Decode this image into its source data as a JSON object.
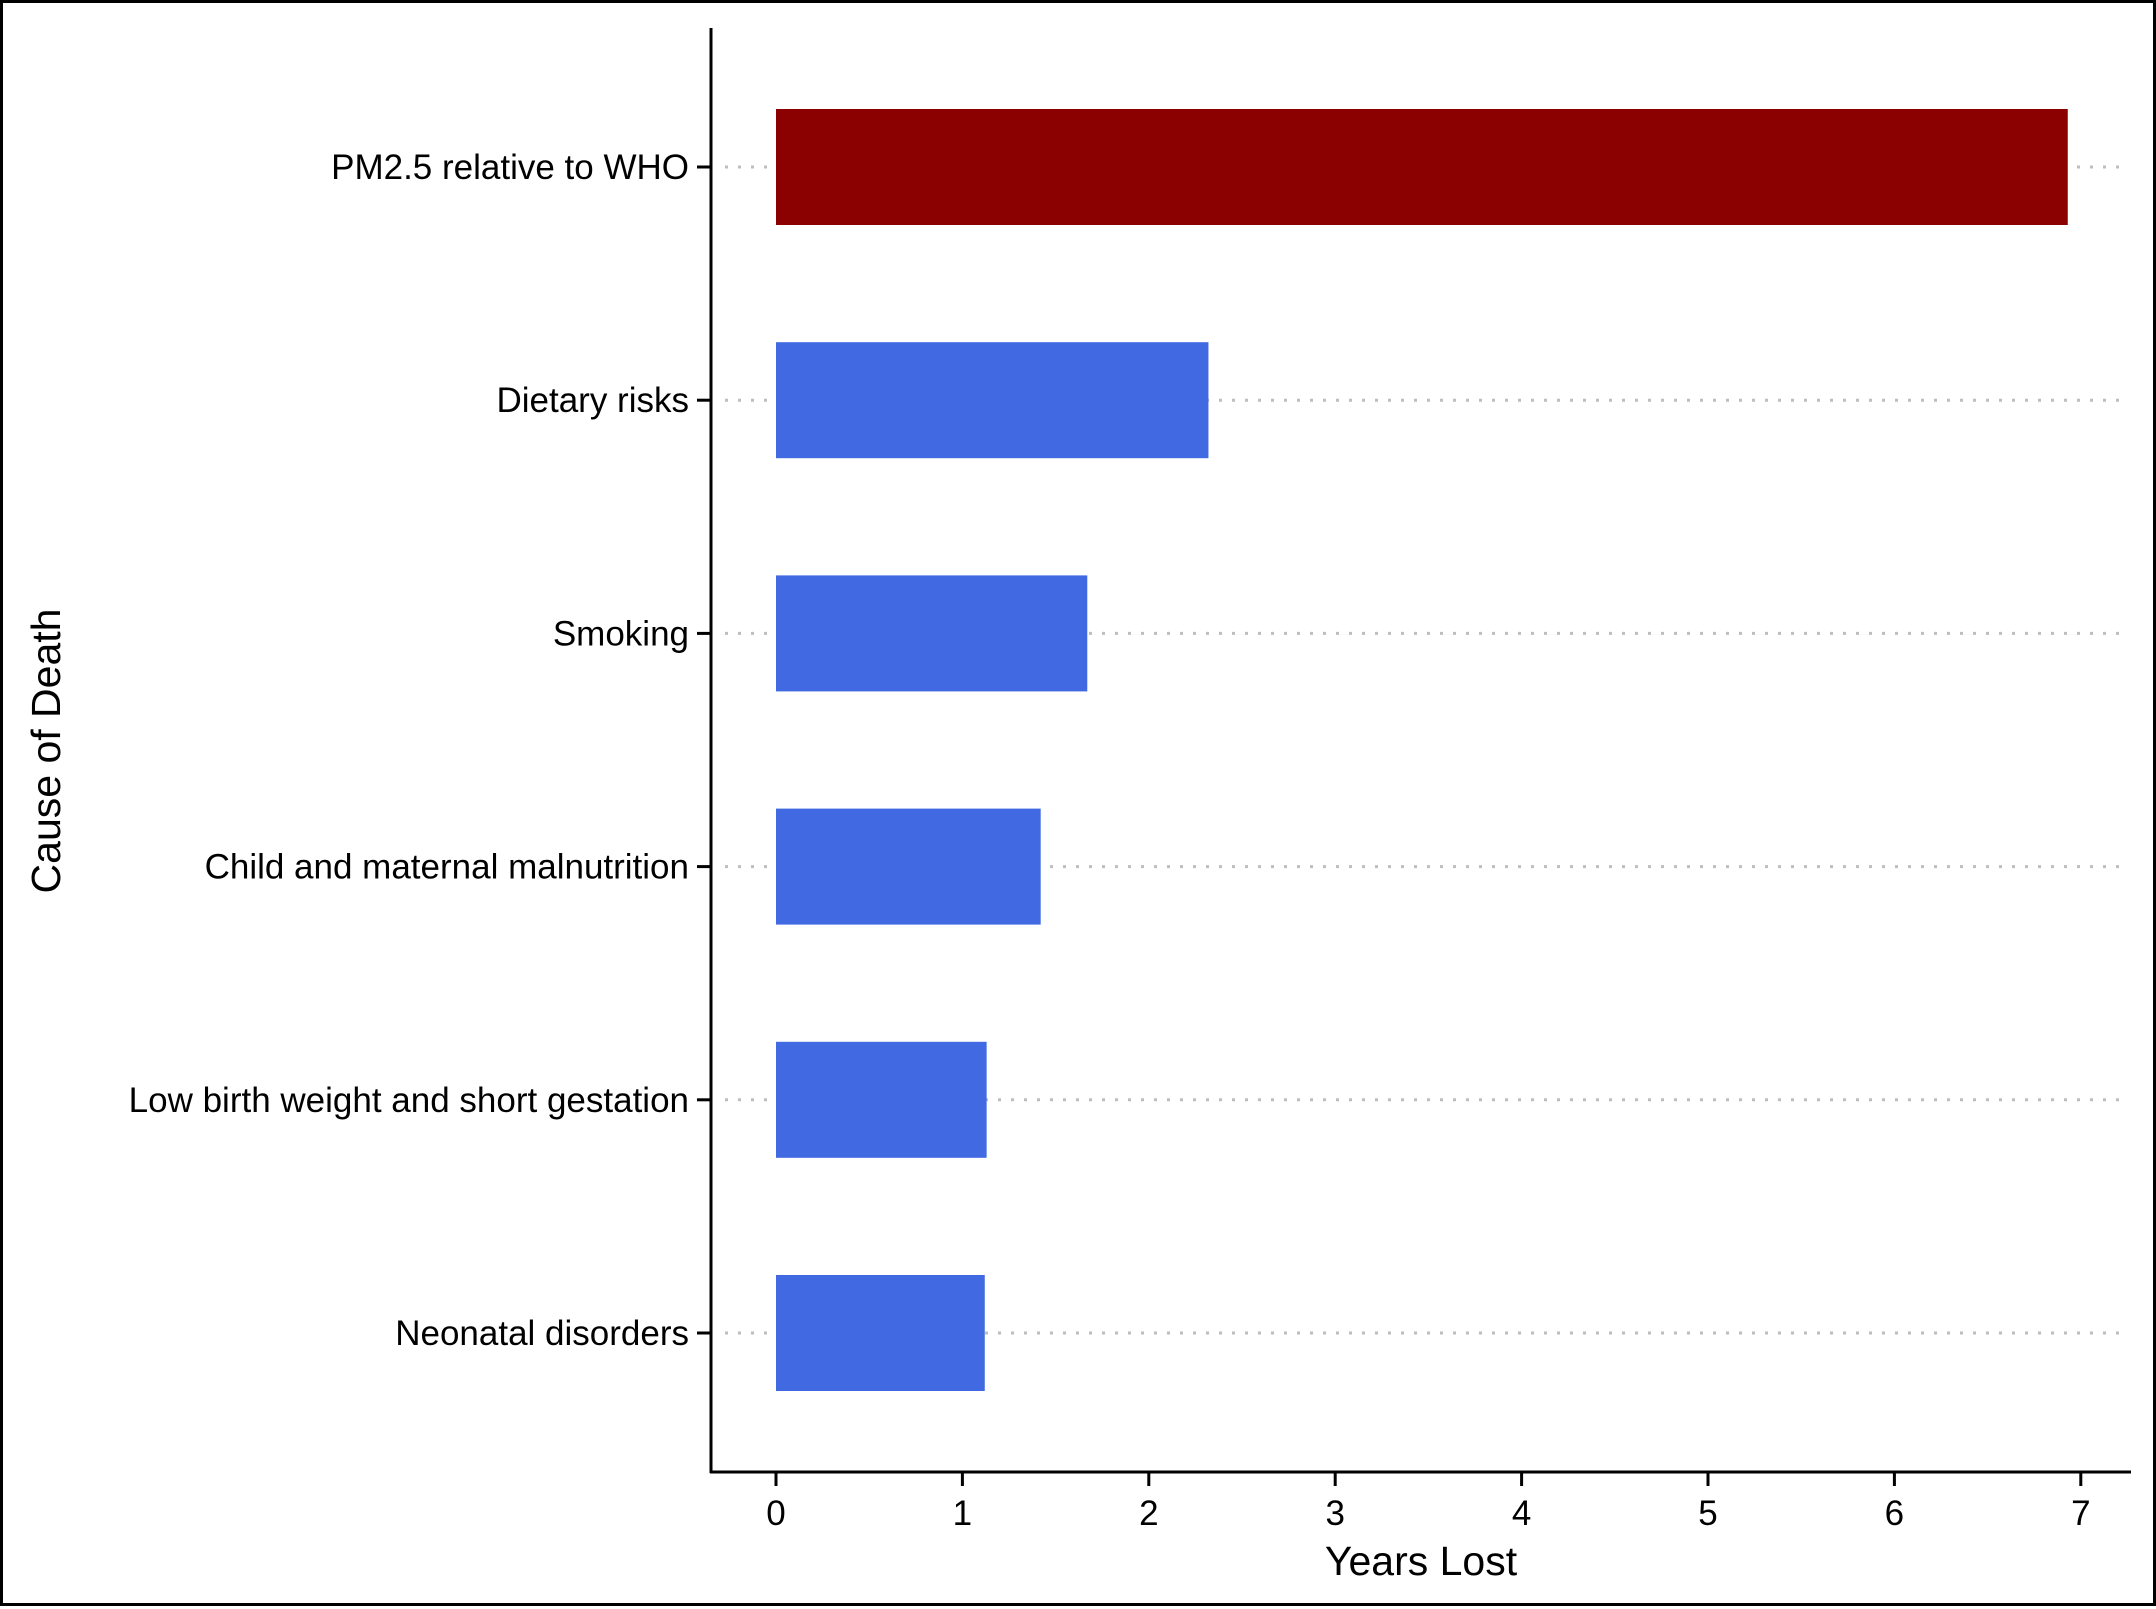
{
  "chart_data": {
    "type": "bar",
    "orientation": "horizontal",
    "categories": [
      "PM2.5 relative to WHO",
      "Dietary risks",
      "Smoking",
      "Child and maternal malnutrition",
      "Low birth weight and short gestation",
      "Neonatal disorders"
    ],
    "values": [
      6.93,
      2.32,
      1.67,
      1.42,
      1.13,
      1.12
    ],
    "bar_colors": [
      "#8B0000",
      "#4169E1",
      "#4169E1",
      "#4169E1",
      "#4169E1",
      "#4169E1"
    ],
    "xlabel": "Years Lost",
    "ylabel": "Cause of Death",
    "xlim": [
      -0.35,
      7.27
    ],
    "x_ticks": [
      "0",
      "1",
      "2",
      "3",
      "4",
      "5",
      "6",
      "7"
    ],
    "grid": "horizontal dotted",
    "legend": "none"
  }
}
